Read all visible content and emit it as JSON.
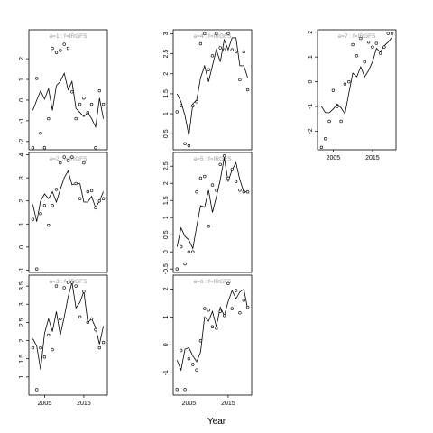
{
  "figure": {
    "xlabel": "Year"
  },
  "chart_data": [
    {
      "type": "line",
      "panel": "a=1",
      "label": "a=1  :  f=IRGFS",
      "xlim": [
        2001,
        2021
      ],
      "ylim": [
        -2.4,
        3.4
      ],
      "y_ticks": [
        -2,
        -1,
        0,
        1,
        2
      ],
      "x_ticks": [],
      "x_tick_labels": [],
      "years": [
        2002,
        2003,
        2004,
        2005,
        2006,
        2007,
        2008,
        2009,
        2010,
        2011,
        2012,
        2013,
        2014,
        2015,
        2016,
        2017,
        2018,
        2019,
        2020
      ],
      "line": [
        -0.5,
        0.0,
        0.45,
        0.05,
        0.55,
        -0.5,
        0.7,
        0.9,
        1.3,
        0.5,
        0.9,
        -0.4,
        -0.6,
        -0.8,
        -0.6,
        -0.9,
        -1.3,
        0.1,
        -0.9
      ],
      "points": [
        -2.3,
        1.05,
        -1.6,
        -2.3,
        -0.9,
        2.5,
        2.3,
        2.4,
        2.7,
        2.5,
        0.4,
        -0.9,
        -0.2,
        0.1,
        -0.6,
        -0.2,
        -2.3,
        0.45,
        -0.2
      ]
    },
    {
      "type": "line",
      "panel": "a=2",
      "label": "a=2  :  f=IRGFS",
      "xlim": [
        2001,
        2021
      ],
      "ylim": [
        -1.1,
        4.1
      ],
      "y_ticks": [
        -1,
        0,
        1,
        2,
        3,
        4
      ],
      "x_ticks": [],
      "x_tick_labels": [],
      "years": [
        2002,
        2003,
        2004,
        2005,
        2006,
        2007,
        2008,
        2009,
        2010,
        2011,
        2012,
        2013,
        2014,
        2015,
        2016,
        2017,
        2018,
        2019,
        2020
      ],
      "line": [
        1.85,
        1.1,
        2.0,
        2.3,
        2.1,
        2.4,
        1.95,
        2.5,
        3.0,
        3.3,
        2.7,
        2.75,
        2.75,
        1.95,
        1.95,
        2.2,
        1.7,
        2.0,
        2.4
      ],
      "points": [
        1.2,
        -0.95,
        1.45,
        1.8,
        0.95,
        1.8,
        2.5,
        3.65,
        3.9,
        3.75,
        3.9,
        2.75,
        2.1,
        3.65,
        2.4,
        2.45,
        1.7,
        2.0,
        2.1
      ]
    },
    {
      "type": "line",
      "panel": "a=3",
      "label": "a=3  :  f=IRGFS",
      "xlim": [
        2001,
        2021
      ],
      "ylim": [
        0.5,
        3.8
      ],
      "y_ticks": [
        1.0,
        1.5,
        2.0,
        2.5,
        3.0,
        3.5
      ],
      "x_ticks": [
        2005,
        2015
      ],
      "x_tick_labels": [
        "2005",
        "2015"
      ],
      "years": [
        2002,
        2003,
        2004,
        2005,
        2006,
        2007,
        2008,
        2009,
        2010,
        2011,
        2012,
        2013,
        2014,
        2015,
        2016,
        2017,
        2018,
        2019,
        2020
      ],
      "line": [
        2.05,
        1.85,
        1.2,
        2.2,
        2.6,
        2.25,
        2.8,
        2.15,
        2.65,
        3.2,
        3.6,
        2.9,
        3.05,
        3.35,
        2.5,
        2.6,
        2.35,
        1.9,
        2.4
      ],
      "points": [
        1.8,
        0.65,
        1.8,
        1.55,
        2.15,
        1.75,
        3.5,
        2.6,
        3.45,
        3.6,
        3.6,
        3.5,
        2.65,
        3.35,
        2.5,
        2.6,
        2.3,
        1.8,
        1.95
      ]
    },
    {
      "type": "line",
      "panel": "a=4",
      "label": "a=4  :  f=IRGFS",
      "xlim": [
        2001,
        2021
      ],
      "ylim": [
        0.1,
        3.1
      ],
      "y_ticks": [
        0.5,
        1.0,
        1.5,
        2.0,
        2.5,
        3.0
      ],
      "x_ticks": [],
      "x_tick_labels": [],
      "years": [
        2002,
        2003,
        2004,
        2005,
        2006,
        2007,
        2008,
        2009,
        2010,
        2011,
        2012,
        2013,
        2014,
        2015,
        2016,
        2017,
        2018,
        2019,
        2020
      ],
      "line": [
        1.5,
        1.3,
        0.95,
        0.45,
        1.25,
        1.35,
        1.9,
        2.2,
        1.8,
        2.2,
        2.6,
        2.3,
        2.85,
        2.6,
        2.9,
        2.9,
        2.2,
        2.2,
        1.9
      ],
      "points": [
        1.05,
        1.2,
        0.25,
        0.2,
        1.2,
        1.3,
        2.75,
        3.0,
        2.1,
        2.45,
        3.0,
        2.65,
        2.6,
        3.0,
        2.6,
        2.55,
        1.85,
        2.55,
        1.6
      ]
    },
    {
      "type": "line",
      "panel": "a=5",
      "label": "a=5  :  f=IRGFS",
      "xlim": [
        2001,
        2021
      ],
      "ylim": [
        -0.6,
        2.9
      ],
      "y_ticks": [
        -0.5,
        0.0,
        0.5,
        1.0,
        1.5,
        2.0,
        2.5
      ],
      "x_ticks": [],
      "x_tick_labels": [],
      "years": [
        2002,
        2003,
        2004,
        2005,
        2006,
        2007,
        2008,
        2009,
        2010,
        2011,
        2012,
        2013,
        2014,
        2015,
        2016,
        2017,
        2018,
        2019,
        2020
      ],
      "line": [
        0.15,
        0.7,
        0.45,
        0.35,
        0.1,
        0.75,
        1.35,
        1.3,
        1.8,
        1.15,
        1.6,
        2.1,
        2.75,
        2.05,
        2.4,
        2.6,
        2.1,
        1.75,
        1.75
      ],
      "points": [
        -0.5,
        0.15,
        -0.35,
        0.0,
        0.0,
        1.75,
        2.15,
        2.2,
        0.75,
        1.95,
        1.8,
        2.55,
        2.8,
        2.15,
        2.4,
        2.05,
        1.8,
        1.75,
        1.75
      ]
    },
    {
      "type": "line",
      "panel": "a=6",
      "label": "a=6  :  f=IRGFS",
      "xlim": [
        2001,
        2021
      ],
      "ylim": [
        -1.8,
        2.5
      ],
      "y_ticks": [
        -1,
        0,
        1,
        2
      ],
      "x_ticks": [
        2005,
        2015
      ],
      "x_tick_labels": [
        "2005",
        "2015"
      ],
      "years": [
        2002,
        2003,
        2004,
        2005,
        2006,
        2007,
        2008,
        2009,
        2010,
        2011,
        2012,
        2013,
        2014,
        2015,
        2016,
        2017,
        2018,
        2019,
        2020
      ],
      "line": [
        -0.55,
        -0.9,
        -0.15,
        -0.1,
        -0.4,
        -0.6,
        -0.25,
        1.0,
        0.85,
        1.2,
        0.65,
        1.35,
        1.05,
        1.55,
        1.95,
        1.65,
        1.9,
        2.0,
        1.3
      ],
      "points": [
        -1.6,
        -0.2,
        -1.6,
        -0.5,
        -0.7,
        -0.9,
        0.15,
        1.3,
        1.25,
        0.65,
        0.6,
        1.2,
        1.05,
        2.2,
        1.3,
        1.95,
        1.15,
        1.6,
        1.35
      ]
    },
    {
      "type": "line",
      "panel": "a=7",
      "label": "a=7  :  f=IRGFS",
      "xlim": [
        2001,
        2021
      ],
      "ylim": [
        -2.75,
        2.1
      ],
      "y_ticks": [
        -2,
        -1,
        0,
        1,
        2
      ],
      "x_ticks": [
        2005,
        2015
      ],
      "x_tick_labels": [
        "2005",
        "2015"
      ],
      "years": [
        2002,
        2003,
        2004,
        2005,
        2006,
        2007,
        2008,
        2009,
        2010,
        2011,
        2012,
        2013,
        2014,
        2015,
        2016,
        2017,
        2018,
        2019,
        2020
      ],
      "line": [
        -1.0,
        -1.25,
        -1.25,
        -1.1,
        -0.9,
        -1.05,
        -1.3,
        -0.45,
        0.35,
        0.2,
        0.6,
        0.2,
        0.45,
        0.8,
        1.35,
        1.2,
        1.45,
        1.6,
        1.8
      ],
      "points": [
        -2.65,
        -2.3,
        -1.6,
        -0.35,
        -1.0,
        -1.6,
        -0.1,
        0.0,
        1.5,
        1.05,
        1.75,
        0.8,
        1.6,
        1.4,
        1.55,
        1.15,
        1.4,
        1.95,
        1.95
      ]
    }
  ]
}
